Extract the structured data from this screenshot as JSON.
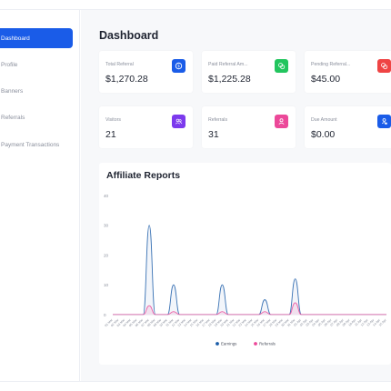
{
  "sidebar": {
    "items": [
      {
        "label": "Dashboard",
        "active": true
      },
      {
        "label": "Profile",
        "active": false
      },
      {
        "label": "Banners",
        "active": false
      },
      {
        "label": "Referrals",
        "active": false
      },
      {
        "label": "Payment Transactions",
        "active": false
      }
    ]
  },
  "header": {
    "title": "Dashboard"
  },
  "stats": [
    {
      "label": "Total Referral",
      "value": "$1,270.28",
      "icon": "dollar-icon",
      "color": "#1a5ce8"
    },
    {
      "label": "Paid Referral Am...",
      "value": "$1,225.28",
      "icon": "paid-icon",
      "color": "#22c55e"
    },
    {
      "label": "Pending Referral...",
      "value": "$45.00",
      "icon": "pending-icon",
      "color": "#ef4444"
    },
    {
      "label": "Visitors",
      "value": "21",
      "icon": "users-icon",
      "color": "#7c3aed"
    },
    {
      "label": "Referrals",
      "value": "31",
      "icon": "user-icon",
      "color": "#ec4899"
    },
    {
      "label": "Due Amount",
      "value": "$0.00",
      "icon": "due-icon",
      "color": "#1a5ce8"
    }
  ],
  "report": {
    "title": "Affiliate Reports"
  },
  "chart_data": {
    "type": "area",
    "title": "Affiliate Reports",
    "ylim": [
      0,
      40
    ],
    "yticks": [
      "40",
      "30",
      "20",
      "10",
      "0"
    ],
    "grid": false,
    "legend_position": "bottom",
    "x": [
      "01 Mar",
      "02 Mar",
      "03 Mar",
      "04 Mar",
      "05 Mar",
      "06 Mar",
      "07 Mar",
      "08 Mar",
      "09 Mar",
      "10 Mar",
      "11 Mar",
      "12 Mar",
      "13 Mar",
      "14 Mar",
      "15 Mar",
      "16 Mar",
      "17 Mar",
      "18 Mar",
      "19 Mar",
      "20 Mar",
      "21 Mar",
      "22 Mar",
      "23 Mar",
      "24 Mar",
      "25 Mar",
      "26 Mar",
      "27 Mar",
      "28 Mar",
      "29 Mar",
      "30 Mar",
      "31 Mar",
      "01 Apr",
      "02 Apr",
      "03 Apr",
      "04 Apr",
      "05 Apr",
      "06 Apr",
      "07 Apr",
      "08 Apr",
      "09 Apr",
      "10 Apr",
      "11 Apr",
      "12 Apr",
      "13 Apr",
      "14 Apr",
      "15 Apr"
    ],
    "series": [
      {
        "name": "Earnings",
        "color": "#1a5ca8",
        "values": [
          0,
          0,
          0,
          0,
          0,
          0,
          30,
          0,
          0,
          0,
          10,
          0,
          0,
          0,
          0,
          0,
          0,
          0,
          10,
          0,
          0,
          0,
          0,
          0,
          0,
          5,
          0,
          0,
          0,
          0,
          12,
          0,
          0,
          0,
          0,
          0,
          0,
          0,
          0,
          0,
          0,
          0,
          0,
          0,
          0,
          0
        ]
      },
      {
        "name": "Referrals",
        "color": "#ec4899",
        "values": [
          0,
          0,
          0,
          0,
          0,
          0,
          3,
          0,
          0,
          0,
          1,
          0,
          0,
          0,
          0,
          0,
          0,
          0,
          1,
          0,
          0,
          0,
          0,
          0,
          0,
          1,
          0,
          0,
          0,
          0,
          4,
          0,
          0,
          0,
          0,
          0,
          0,
          0,
          0,
          0,
          0,
          0,
          0,
          0,
          0,
          0
        ]
      }
    ]
  }
}
